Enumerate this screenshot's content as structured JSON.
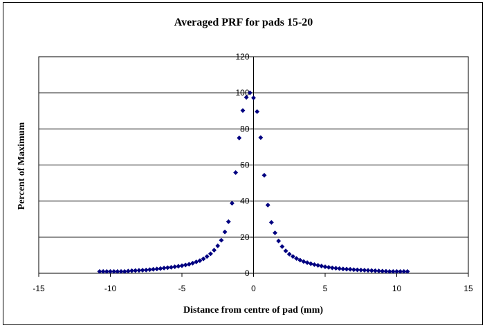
{
  "chart_data": {
    "type": "scatter",
    "title": "Averaged PRF for pads 15-20",
    "xlabel": "Distance from centre of pad (mm)",
    "ylabel": "Percent of Maximum",
    "xlim": [
      -15,
      15
    ],
    "ylim": [
      0,
      120
    ],
    "xticks": [
      -15,
      -10,
      -5,
      0,
      5,
      10,
      15
    ],
    "yticks": [
      0,
      20,
      40,
      60,
      80,
      100,
      120
    ],
    "grid": "horizontal",
    "legend": "none",
    "marker": "diamond",
    "color": "#000080",
    "series": [
      {
        "x": [
          -10.75,
          -10.5,
          -10.25,
          -10.0,
          -9.75,
          -9.5,
          -9.25,
          -9.0,
          -8.75,
          -8.5,
          -8.25,
          -8.0,
          -7.75,
          -7.5,
          -7.25,
          -7.0,
          -6.75,
          -6.5,
          -6.25,
          -6.0,
          -5.75,
          -5.5,
          -5.25,
          -5.0,
          -4.75,
          -4.5,
          -4.25,
          -4.0,
          -3.75,
          -3.5,
          -3.25,
          -3.0,
          -2.75,
          -2.5,
          -2.25,
          -2.0,
          -1.75,
          -1.5,
          -1.25,
          -1.0,
          -0.75,
          -0.5,
          -0.25,
          0.0,
          0.25,
          0.5,
          0.75,
          1.0,
          1.25,
          1.5,
          1.75,
          2.0,
          2.25,
          2.5,
          2.75,
          3.0,
          3.25,
          3.5,
          3.75,
          4.0,
          4.25,
          4.5,
          4.75,
          5.0,
          5.25,
          5.5,
          5.75,
          6.0,
          6.25,
          6.5,
          6.75,
          7.0,
          7.25,
          7.5,
          7.75,
          8.0,
          8.25,
          8.5,
          8.75,
          9.0,
          9.25,
          9.5,
          9.75,
          10.0,
          10.25,
          10.5,
          10.75
        ],
        "y": [
          1.0,
          1.0,
          1.0,
          1.0,
          1.0,
          1.0,
          1.0,
          1.0,
          1.2,
          1.4,
          1.5,
          1.6,
          1.7,
          1.8,
          2.0,
          2.2,
          2.4,
          2.6,
          2.9,
          3.1,
          3.3,
          3.6,
          3.9,
          4.2,
          4.6,
          5.0,
          5.6,
          6.3,
          7.0,
          8.0,
          9.3,
          10.8,
          12.8,
          15.2,
          18.3,
          22.9,
          28.6,
          38.8,
          55.8,
          75.0,
          90.2,
          97.5,
          100.0,
          97.2,
          89.6,
          75.2,
          54.3,
          37.8,
          28.2,
          22.4,
          17.9,
          14.8,
          12.4,
          10.6,
          9.3,
          8.2,
          7.3,
          6.5,
          5.9,
          5.3,
          4.8,
          4.4,
          4.0,
          3.6,
          3.3,
          3.0,
          2.8,
          2.6,
          2.4,
          2.3,
          2.2,
          2.0,
          1.9,
          1.8,
          1.7,
          1.6,
          1.5,
          1.4,
          1.3,
          1.2,
          1.1,
          1.0,
          1.0,
          1.0,
          1.0,
          1.0,
          1.0
        ]
      }
    ]
  }
}
